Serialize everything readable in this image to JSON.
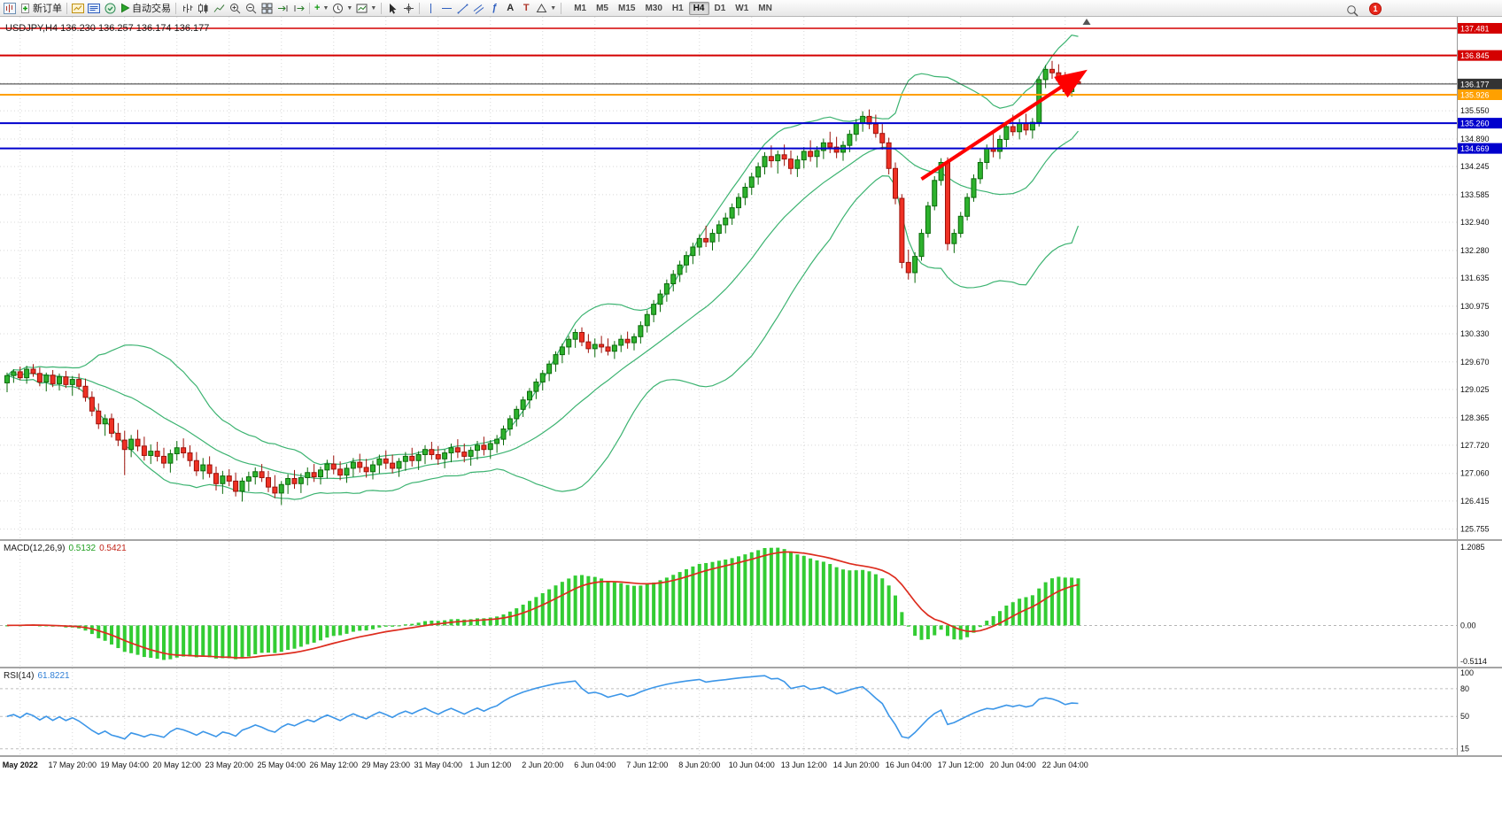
{
  "toolbar": {
    "new_order": "新订单",
    "auto_trading": "自动交易",
    "timeframes": [
      "M1",
      "M5",
      "M15",
      "M30",
      "H1",
      "H4",
      "D1",
      "W1",
      "MN"
    ],
    "active_timeframe": "H4",
    "notification_count": "1"
  },
  "indicators": {
    "macd": {
      "name": "MACD(12,26,9)",
      "value_main": "0.5132",
      "value_signal": "0.5421",
      "scale_top": "1.2085",
      "scale_zero": "0.00",
      "scale_bottom": "-0.5114",
      "fast": 12,
      "slow": 26,
      "signal": 9
    },
    "rsi": {
      "name": "RSI(14)",
      "value": "61.8221",
      "period": 14,
      "scale_labels": [
        "100",
        "80",
        "50",
        "15"
      ],
      "levels": [
        80,
        50,
        15
      ],
      "range_min": 8,
      "range_max": 102
    }
  },
  "colors": {
    "bull": "#2db22d",
    "bull_border": "#0b6b0b",
    "bear": "#ef3124",
    "bear_border": "#9c120b",
    "bollinger": "#3cb371",
    "grid": "#d8d8d8",
    "macd_hist": "#33cc33",
    "macd_signal": "#dd2c1e",
    "rsi_line": "#3c96e8",
    "arrow": "#fe0000"
  },
  "chart_data": {
    "type": "candlestick",
    "symbol": "USDJPY",
    "timeframe": "H4",
    "symbol_header": "USDJPY,H4 136.230 136.257 136.174 136.177",
    "ohlc_current": {
      "open": "136.230",
      "high": "136.257",
      "low": "136.174",
      "close": "136.177"
    },
    "price_axis": {
      "min": 125.52,
      "max": 137.75,
      "labels": [
        135.55,
        134.89,
        134.245,
        133.585,
        132.94,
        132.28,
        131.635,
        130.975,
        130.33,
        129.67,
        129.025,
        128.365,
        127.72,
        127.06,
        126.415,
        125.755
      ],
      "grid_extra": [
        136.195,
        136.855
      ]
    },
    "line_levels": [
      {
        "price": 137.481,
        "label": "137.481",
        "color": "#d40000",
        "width": 1.5
      },
      {
        "price": 136.845,
        "label": "136.845",
        "color": "#d40000",
        "width": 2
      },
      {
        "price": 136.177,
        "label": "136.177",
        "color": "#333333",
        "width": 1,
        "role": "current-price"
      },
      {
        "price": 135.926,
        "label": "135.926",
        "color": "#ffa000",
        "width": 2
      },
      {
        "price": 135.26,
        "label": "135.260",
        "color": "#0000cd",
        "width": 2
      },
      {
        "price": 134.669,
        "label": "134.669",
        "color": "#0000cd",
        "width": 2
      }
    ],
    "time_labels": [
      "May 2022",
      "17 May 20:00",
      "19 May 04:00",
      "20 May 12:00",
      "23 May 20:00",
      "25 May 04:00",
      "26 May 12:00",
      "29 May 23:00",
      "31 May 04:00",
      "1 Jun 12:00",
      "2 Jun 20:00",
      "6 Jun 04:00",
      "7 Jun 12:00",
      "8 Jun 20:00",
      "10 Jun 04:00",
      "13 Jun 12:00",
      "14 Jun 20:00",
      "16 Jun 04:00",
      "17 Jun 12:00",
      "20 Jun 04:00",
      "22 Jun 04:00"
    ],
    "bollinger": {
      "period": 20,
      "deviation": 2
    },
    "trend_arrow": {
      "from_bar": 140,
      "from_price": 133.95,
      "to_bar": 164.5,
      "to_price": 136.42
    },
    "candles": [
      [
        129.18,
        129.42,
        128.96,
        129.35
      ],
      [
        129.35,
        129.5,
        129.18,
        129.44
      ],
      [
        129.44,
        129.56,
        129.24,
        129.3
      ],
      [
        129.3,
        129.58,
        129.16,
        129.5
      ],
      [
        129.5,
        129.62,
        129.32,
        129.4
      ],
      [
        129.4,
        129.54,
        129.1,
        129.2
      ],
      [
        129.2,
        129.42,
        128.98,
        129.36
      ],
      [
        129.36,
        129.48,
        129.08,
        129.16
      ],
      [
        129.16,
        129.4,
        129.0,
        129.32
      ],
      [
        129.32,
        129.46,
        129.06,
        129.14
      ],
      [
        129.14,
        129.34,
        128.88,
        129.26
      ],
      [
        129.26,
        129.4,
        129.02,
        129.1
      ],
      [
        129.1,
        129.28,
        128.74,
        128.84
      ],
      [
        128.84,
        128.98,
        128.4,
        128.52
      ],
      [
        128.52,
        128.7,
        128.1,
        128.22
      ],
      [
        128.22,
        128.44,
        127.94,
        128.34
      ],
      [
        128.34,
        128.46,
        127.9,
        128.0
      ],
      [
        128.0,
        128.24,
        127.7,
        127.84
      ],
      [
        127.84,
        128.06,
        127.02,
        127.62
      ],
      [
        127.62,
        127.96,
        127.44,
        127.86
      ],
      [
        127.86,
        128.08,
        127.58,
        127.7
      ],
      [
        127.7,
        127.92,
        127.36,
        127.48
      ],
      [
        127.48,
        127.74,
        127.28,
        127.58
      ],
      [
        127.58,
        127.8,
        127.34,
        127.46
      ],
      [
        127.46,
        127.66,
        127.18,
        127.3
      ],
      [
        127.3,
        127.62,
        127.08,
        127.52
      ],
      [
        127.52,
        127.82,
        127.36,
        127.66
      ],
      [
        127.66,
        127.88,
        127.42,
        127.54
      ],
      [
        127.54,
        127.72,
        127.22,
        127.36
      ],
      [
        127.36,
        127.56,
        127.0,
        127.12
      ],
      [
        127.12,
        127.42,
        126.92,
        127.26
      ],
      [
        127.26,
        127.46,
        126.96,
        127.06
      ],
      [
        127.06,
        127.22,
        126.66,
        126.82
      ],
      [
        126.82,
        127.12,
        126.58,
        127.0
      ],
      [
        127.0,
        127.16,
        126.76,
        126.88
      ],
      [
        126.88,
        127.08,
        126.52,
        126.64
      ],
      [
        126.64,
        126.96,
        126.4,
        126.88
      ],
      [
        126.88,
        127.1,
        126.64,
        126.98
      ],
      [
        126.98,
        127.2,
        126.8,
        127.1
      ],
      [
        127.1,
        127.28,
        126.86,
        126.96
      ],
      [
        126.96,
        127.12,
        126.62,
        126.74
      ],
      [
        126.74,
        127.02,
        126.48,
        126.6
      ],
      [
        126.6,
        126.88,
        126.32,
        126.8
      ],
      [
        126.8,
        127.04,
        126.58,
        126.94
      ],
      [
        126.94,
        127.14,
        126.7,
        126.82
      ],
      [
        126.82,
        127.06,
        126.6,
        126.96
      ],
      [
        126.96,
        127.2,
        126.78,
        127.08
      ],
      [
        127.08,
        127.28,
        126.86,
        126.98
      ],
      [
        126.98,
        127.22,
        126.8,
        127.14
      ],
      [
        127.14,
        127.38,
        126.94,
        127.28
      ],
      [
        127.28,
        127.48,
        127.04,
        127.16
      ],
      [
        127.16,
        127.34,
        126.9,
        127.02
      ],
      [
        127.02,
        127.28,
        126.84,
        127.18
      ],
      [
        127.18,
        127.42,
        126.98,
        127.32
      ],
      [
        127.32,
        127.52,
        127.08,
        127.2
      ],
      [
        127.2,
        127.4,
        126.96,
        127.1
      ],
      [
        127.1,
        127.36,
        126.92,
        127.26
      ],
      [
        127.26,
        127.5,
        127.06,
        127.4
      ],
      [
        127.4,
        127.6,
        127.16,
        127.3
      ],
      [
        127.3,
        127.5,
        127.06,
        127.18
      ],
      [
        127.18,
        127.42,
        126.98,
        127.34
      ],
      [
        127.34,
        127.56,
        127.12,
        127.46
      ],
      [
        127.46,
        127.66,
        127.22,
        127.36
      ],
      [
        127.36,
        127.58,
        127.14,
        127.5
      ],
      [
        127.5,
        127.72,
        127.28,
        127.62
      ],
      [
        127.62,
        127.8,
        127.38,
        127.5
      ],
      [
        127.5,
        127.7,
        127.26,
        127.4
      ],
      [
        127.4,
        127.62,
        127.18,
        127.54
      ],
      [
        127.54,
        127.76,
        127.32,
        127.66
      ],
      [
        127.66,
        127.86,
        127.42,
        127.56
      ],
      [
        127.56,
        127.76,
        127.32,
        127.46
      ],
      [
        127.46,
        127.68,
        127.24,
        127.6
      ],
      [
        127.6,
        127.82,
        127.38,
        127.72
      ],
      [
        127.72,
        127.92,
        127.48,
        127.62
      ],
      [
        127.62,
        127.84,
        127.4,
        127.76
      ],
      [
        127.76,
        127.96,
        127.54,
        127.86
      ],
      [
        127.86,
        128.18,
        127.72,
        128.1
      ],
      [
        128.1,
        128.42,
        127.94,
        128.34
      ],
      [
        128.34,
        128.64,
        128.16,
        128.56
      ],
      [
        128.56,
        128.86,
        128.38,
        128.78
      ],
      [
        128.78,
        129.06,
        128.58,
        128.98
      ],
      [
        128.98,
        129.28,
        128.8,
        129.2
      ],
      [
        129.2,
        129.48,
        129.0,
        129.4
      ],
      [
        129.4,
        129.7,
        129.22,
        129.62
      ],
      [
        129.62,
        129.92,
        129.44,
        129.84
      ],
      [
        129.84,
        130.1,
        129.64,
        130.02
      ],
      [
        130.02,
        130.28,
        129.84,
        130.2
      ],
      [
        130.2,
        130.44,
        130.0,
        130.36
      ],
      [
        130.36,
        130.48,
        130.04,
        130.14
      ],
      [
        130.14,
        130.32,
        129.88,
        129.98
      ],
      [
        129.98,
        130.22,
        129.78,
        130.08
      ],
      [
        130.08,
        130.28,
        129.88,
        130.02
      ],
      [
        130.02,
        130.22,
        129.82,
        129.92
      ],
      [
        129.92,
        130.16,
        129.74,
        130.06
      ],
      [
        130.06,
        130.3,
        129.9,
        130.2
      ],
      [
        130.2,
        130.38,
        129.98,
        130.12
      ],
      [
        130.12,
        130.34,
        129.94,
        130.26
      ],
      [
        130.26,
        130.62,
        130.1,
        130.52
      ],
      [
        130.52,
        130.88,
        130.36,
        130.78
      ],
      [
        130.78,
        131.12,
        130.6,
        131.02
      ],
      [
        131.02,
        131.36,
        130.84,
        131.26
      ],
      [
        131.26,
        131.6,
        131.08,
        131.5
      ],
      [
        131.5,
        131.82,
        131.32,
        131.72
      ],
      [
        131.72,
        132.04,
        131.54,
        131.94
      ],
      [
        131.94,
        132.26,
        131.76,
        132.16
      ],
      [
        132.16,
        132.46,
        131.96,
        132.36
      ],
      [
        132.36,
        132.66,
        132.16,
        132.56
      ],
      [
        132.56,
        132.86,
        132.36,
        132.48
      ],
      [
        132.48,
        132.78,
        132.28,
        132.68
      ],
      [
        132.68,
        132.98,
        132.48,
        132.88
      ],
      [
        132.88,
        133.16,
        132.68,
        133.04
      ],
      [
        133.04,
        133.38,
        132.88,
        133.28
      ],
      [
        133.28,
        133.62,
        133.1,
        133.52
      ],
      [
        133.52,
        133.86,
        133.34,
        133.76
      ],
      [
        133.76,
        134.1,
        133.58,
        134.0
      ],
      [
        134.0,
        134.34,
        133.82,
        134.24
      ],
      [
        134.24,
        134.58,
        134.06,
        134.48
      ],
      [
        134.48,
        134.74,
        134.22,
        134.38
      ],
      [
        134.38,
        134.62,
        134.08,
        134.52
      ],
      [
        134.52,
        134.76,
        134.26,
        134.42
      ],
      [
        134.42,
        134.62,
        134.06,
        134.2
      ],
      [
        134.2,
        134.5,
        134.0,
        134.4
      ],
      [
        134.4,
        134.7,
        134.2,
        134.6
      ],
      [
        134.6,
        134.86,
        134.36,
        134.48
      ],
      [
        134.48,
        134.72,
        134.22,
        134.62
      ],
      [
        134.62,
        134.9,
        134.42,
        134.8
      ],
      [
        134.8,
        135.06,
        134.56,
        134.7
      ],
      [
        134.7,
        134.94,
        134.44,
        134.58
      ],
      [
        134.58,
        134.84,
        134.38,
        134.74
      ],
      [
        134.74,
        135.1,
        134.58,
        135.0
      ],
      [
        135.0,
        135.36,
        134.84,
        135.26
      ],
      [
        135.26,
        135.54,
        135.06,
        135.42
      ],
      [
        135.42,
        135.58,
        135.12,
        135.24
      ],
      [
        135.24,
        135.46,
        134.92,
        135.02
      ],
      [
        135.02,
        135.24,
        134.64,
        134.8
      ],
      [
        134.8,
        134.92,
        134.06,
        134.2
      ],
      [
        134.2,
        134.34,
        133.36,
        133.5
      ],
      [
        133.5,
        133.6,
        131.86,
        132.0
      ],
      [
        132.0,
        132.3,
        131.6,
        131.76
      ],
      [
        131.76,
        132.24,
        131.52,
        132.14
      ],
      [
        132.14,
        132.78,
        132.04,
        132.68
      ],
      [
        132.68,
        133.42,
        132.58,
        133.32
      ],
      [
        133.32,
        134.02,
        133.22,
        133.92
      ],
      [
        133.92,
        134.44,
        133.8,
        134.34
      ],
      [
        134.34,
        134.46,
        132.28,
        132.44
      ],
      [
        132.44,
        132.78,
        132.22,
        132.68
      ],
      [
        132.68,
        133.18,
        132.58,
        133.08
      ],
      [
        133.08,
        133.62,
        132.98,
        133.52
      ],
      [
        133.52,
        134.06,
        133.42,
        133.96
      ],
      [
        133.96,
        134.44,
        133.84,
        134.34
      ],
      [
        134.34,
        134.76,
        134.18,
        134.66
      ],
      [
        134.66,
        135.04,
        134.46,
        134.6
      ],
      [
        134.6,
        134.98,
        134.42,
        134.88
      ],
      [
        134.88,
        135.28,
        134.7,
        135.18
      ],
      [
        135.18,
        135.46,
        134.96,
        135.06
      ],
      [
        135.06,
        135.36,
        134.88,
        135.26
      ],
      [
        135.26,
        135.48,
        134.98,
        135.1
      ],
      [
        135.1,
        135.38,
        134.9,
        135.28
      ],
      [
        135.28,
        136.36,
        135.18,
        136.28
      ],
      [
        136.28,
        136.62,
        136.08,
        136.52
      ],
      [
        136.52,
        136.72,
        136.3,
        136.44
      ],
      [
        136.44,
        136.64,
        136.16,
        136.26
      ],
      [
        136.26,
        136.46,
        135.9,
        136.0
      ],
      [
        136.0,
        136.26,
        135.88,
        136.2
      ],
      [
        136.23,
        136.257,
        136.174,
        136.177
      ]
    ]
  }
}
